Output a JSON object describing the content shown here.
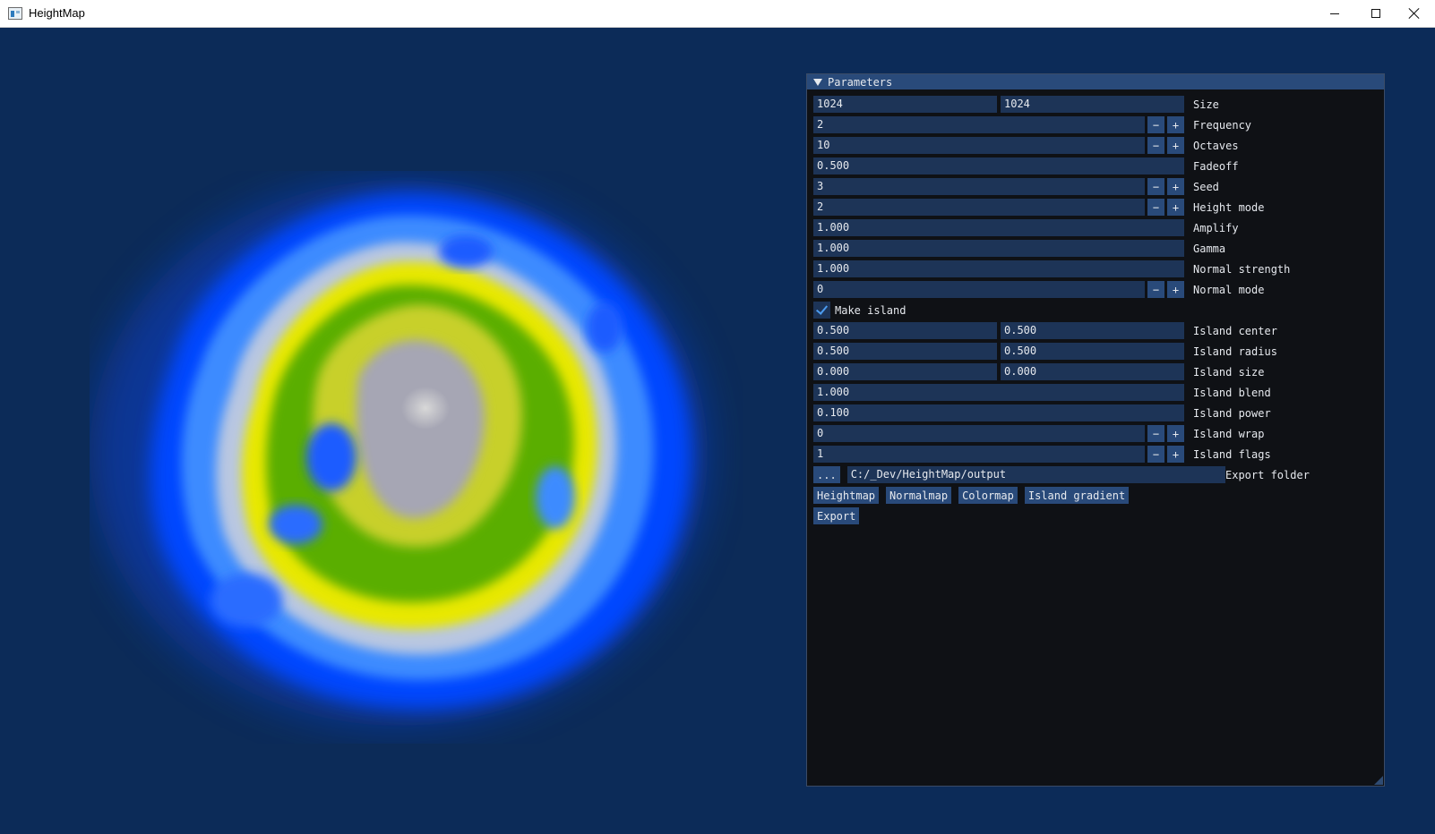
{
  "window": {
    "title": "HeightMap",
    "controls": {
      "minimize": "minimize-icon",
      "maximize": "maximize-icon",
      "close": "close-icon"
    }
  },
  "colors": {
    "background": "#0c2b58",
    "panel_bg": "#0f1115",
    "header_bg": "#294a7a",
    "field_bg": "#1d3457",
    "check_mark": "#4c9cf0",
    "terrain": [
      "#0a2b66",
      "#0040ff",
      "#2a7bff",
      "#c8c8c8",
      "#e8e800",
      "#70b000",
      "#30a000",
      "#9a9aa6",
      "#d8d8d8"
    ]
  },
  "panel": {
    "title": "Parameters",
    "size": {
      "w": "1024",
      "h": "1024",
      "label": "Size"
    },
    "frequency": {
      "value": "2",
      "label": "Frequency"
    },
    "octaves": {
      "value": "10",
      "label": "Octaves"
    },
    "fadeoff": {
      "value": "0.500",
      "label": "Fadeoff"
    },
    "seed": {
      "value": "3",
      "label": "Seed"
    },
    "height_mode": {
      "value": "2",
      "label": "Height mode"
    },
    "amplify": {
      "value": "1.000",
      "label": "Amplify"
    },
    "gamma": {
      "value": "1.000",
      "label": "Gamma"
    },
    "normal_strength": {
      "value": "1.000",
      "label": "Normal strength"
    },
    "normal_mode": {
      "value": "0",
      "label": "Normal mode"
    },
    "make_island": {
      "checked": true,
      "label": "Make island"
    },
    "island_center": {
      "x": "0.500",
      "y": "0.500",
      "label": "Island center"
    },
    "island_radius": {
      "x": "0.500",
      "y": "0.500",
      "label": "Island radius"
    },
    "island_size": {
      "x": "0.000",
      "y": "0.000",
      "label": "Island size"
    },
    "island_blend": {
      "value": "1.000",
      "label": "Island blend"
    },
    "island_power": {
      "value": "0.100",
      "label": "Island power"
    },
    "island_wrap": {
      "value": "0",
      "label": "Island wrap"
    },
    "island_flags": {
      "value": "1",
      "label": "Island flags"
    },
    "export_folder": {
      "browse": "...",
      "path": "C:/_Dev/HeightMap/output",
      "label": "Export folder"
    },
    "buttons": {
      "heightmap": "Heightmap",
      "normalmap": "Normalmap",
      "colormap": "Colormap",
      "island_gradient": "Island gradient",
      "export": "Export"
    },
    "stepper": {
      "minus": "−",
      "plus": "+"
    }
  }
}
